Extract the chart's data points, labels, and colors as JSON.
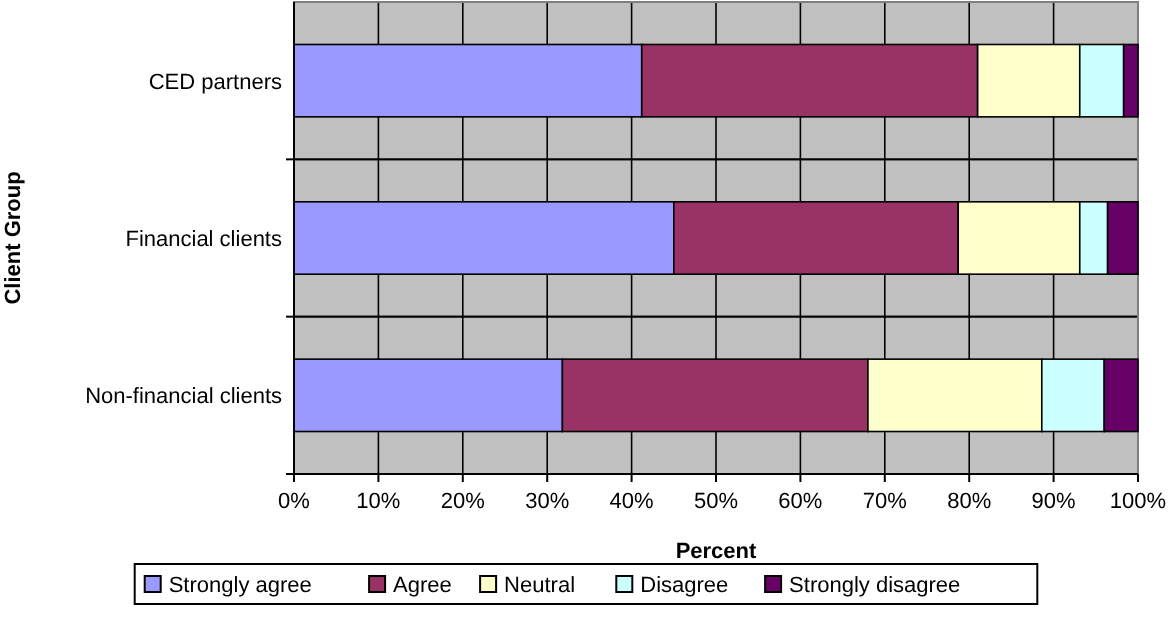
{
  "chart_data": {
    "type": "bar",
    "orientation": "horizontal",
    "stacked": true,
    "xlabel": "Percent",
    "ylabel": "Client Group",
    "categories": [
      "CED partners",
      "Financial clients",
      "Non-financial clients"
    ],
    "series": [
      {
        "name": "Strongly agree",
        "color": "#9999ff",
        "values": [
          41.2,
          45.0,
          31.8
        ]
      },
      {
        "name": "Agree",
        "color": "#993366",
        "values": [
          39.8,
          33.7,
          36.2
        ]
      },
      {
        "name": "Neutral",
        "color": "#ffffcc",
        "values": [
          12.1,
          14.4,
          20.6
        ]
      },
      {
        "name": "Disagree",
        "color": "#ccffff",
        "values": [
          5.2,
          3.3,
          7.4
        ]
      },
      {
        "name": "Strongly disagree",
        "color": "#660066",
        "values": [
          1.7,
          3.6,
          4.0
        ]
      }
    ],
    "xlim": [
      0,
      100
    ],
    "xticks": [
      {
        "value": 0,
        "label": "0%"
      },
      {
        "value": 10,
        "label": "10%"
      },
      {
        "value": 20,
        "label": "20%"
      },
      {
        "value": 30,
        "label": "30%"
      },
      {
        "value": 40,
        "label": "40%"
      },
      {
        "value": 50,
        "label": "50%"
      },
      {
        "value": 60,
        "label": "60%"
      },
      {
        "value": 70,
        "label": "70%"
      },
      {
        "value": 80,
        "label": "80%"
      },
      {
        "value": 90,
        "label": "90%"
      },
      {
        "value": 100,
        "label": "100%"
      }
    ],
    "grid": true,
    "legend": "bottom"
  }
}
